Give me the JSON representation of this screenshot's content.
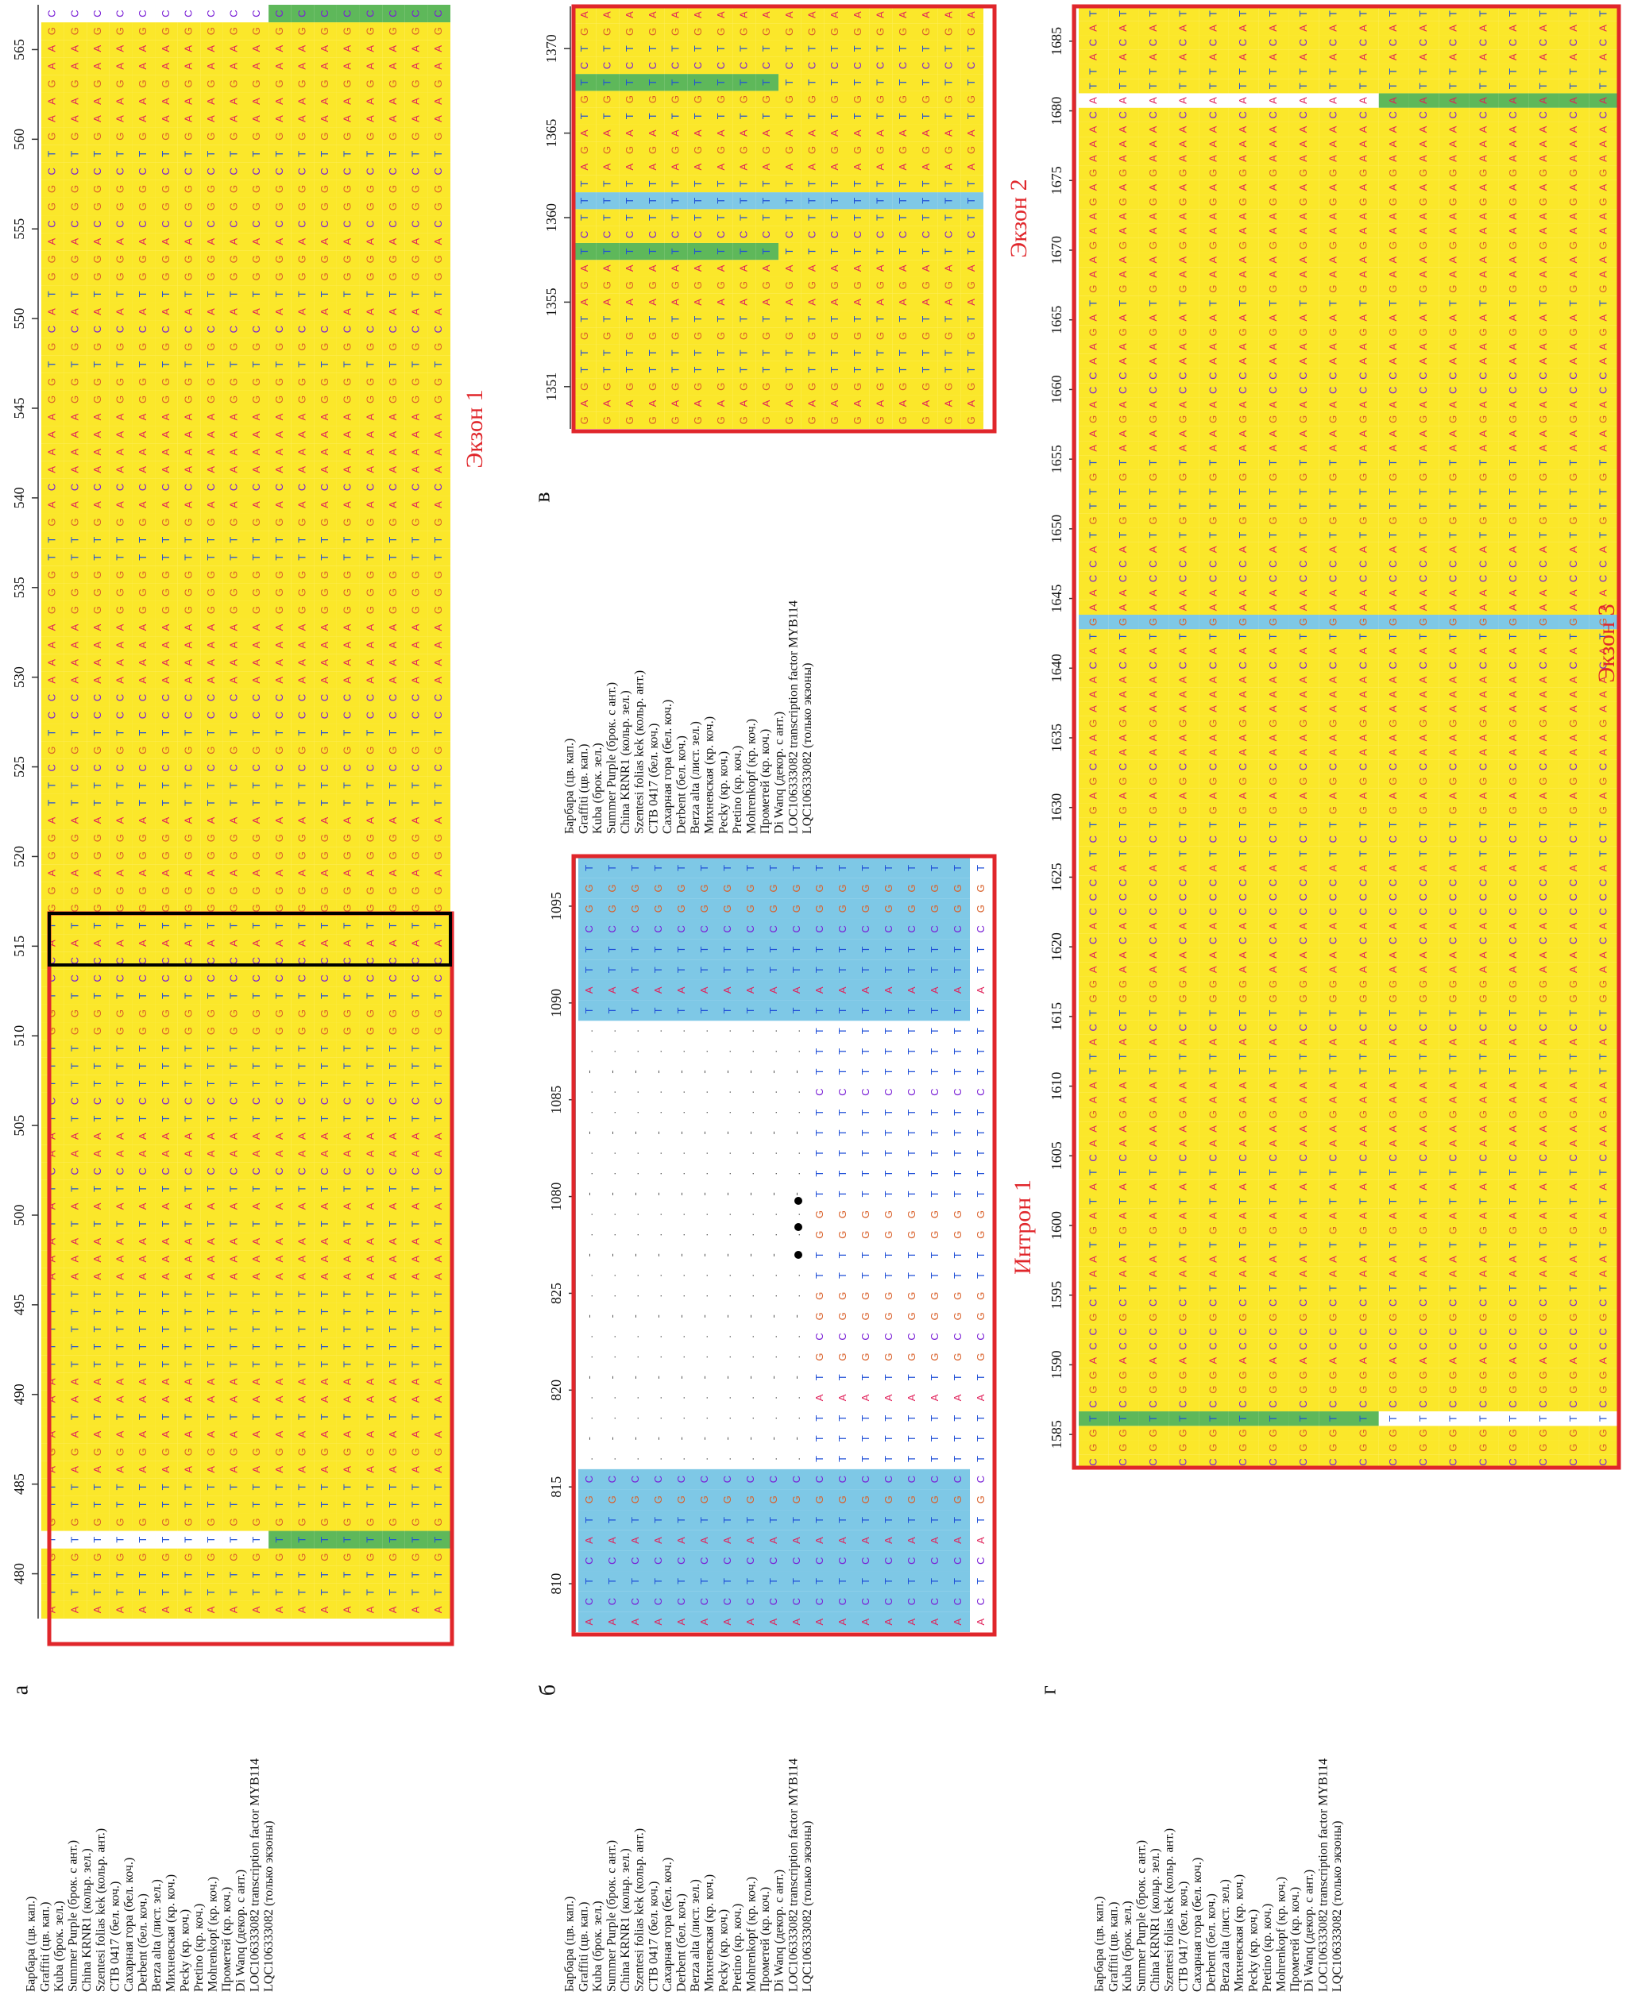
{
  "figure": {
    "panels": [
      {
        "id": "a",
        "label": "а",
        "region": "Экзон 1",
        "ticks": [
          "480",
          "485",
          "490",
          "495",
          "500",
          "505",
          "510",
          "515",
          "520",
          "525",
          "530",
          "535",
          "540",
          "545",
          "550",
          "555",
          "560",
          "565"
        ]
      },
      {
        "id": "b",
        "label": "б",
        "region": "Интрон 1",
        "ticks": [
          "810",
          "815",
          "820",
          "825",
          "1080",
          "1085",
          "1090",
          "1095"
        ]
      },
      {
        "id": "c",
        "label": "в",
        "region": "Экзон 2",
        "ticks": [
          "1351",
          "1355",
          "1360",
          "1365",
          "1370"
        ]
      },
      {
        "id": "d",
        "label": "г",
        "region": "Экзон 3",
        "ticks": [
          "1585",
          "1590",
          "1595",
          "1600",
          "1605",
          "1610",
          "1615",
          "1620",
          "1625",
          "1630",
          "1635",
          "1640",
          "1645",
          "1650",
          "1655",
          "1660",
          "1665",
          "1670",
          "1675",
          "1680",
          "1685"
        ]
      }
    ],
    "sequences": [
      "Барбара (цв. кап.)",
      "Graffiti (цв. кап.)",
      "Kuba (брок. зел.)",
      "Summer Purple (брок. с ант.)",
      "China KRNR1 (кольр. зел.)",
      "Szentesi folias kek (кольр. ант.)",
      "СТВ 0417 (бел. коч.)",
      "Сахарная гора (бел. коч.)",
      "Derbent (бел. коч.)",
      "Berza alta (лист. зел.)",
      "Михневская (кр. коч.)",
      "Pecky (кр. коч.)",
      "Pretino (кр. коч.)",
      "Mohrenkopf (кр. коч.)",
      "Прометей (кр. коч.)",
      "Di Wanq (декор. с ант.)",
      "LOC106333082 transcription factor MYB114",
      "LQC106333082 (только экзоны)"
    ],
    "alignments": {
      "a": "ATTGTGTTAGATAATTTTTAAATATCAATCTTTGGTCCATGGAGGATTCGTCCAAAAGGGTTGACAAAAGGTGCATGGACGGCTGAAGAAGC",
      "b": "ACTCATGCTTTATGCGGTTGGTTTTTCTTTTATTCGGT",
      "c": "GAGTTGTAGATCTTTAGATGTCTGA",
      "d": "CGGTCGGACCGCTAATGATATCAAGAATTACTGGAACACCCATCTGAGCAAGAAACATGAACCATGTTGTAAGACCAAGATGAAGAAGAGAAACATTACAT"
    }
  }
}
